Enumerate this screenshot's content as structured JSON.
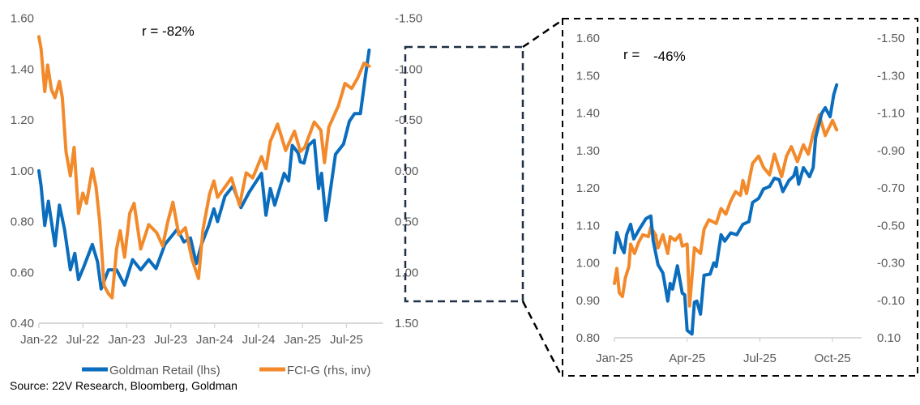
{
  "colors": {
    "retail": "#0b6dbd",
    "fci": "#f28a2b",
    "axis": "#d9d9d9",
    "box": "#1f2f45"
  },
  "legend": {
    "retail": "Goldman Retail (lhs)",
    "fci": "FCI-G (rhs, inv)"
  },
  "source": "Source: 22V Research, Bloomberg, Goldman",
  "chart_data": [
    {
      "type": "line",
      "id": "main",
      "annotation": "r = -82%",
      "x_unit": "months since Jan-22",
      "xlim": [
        0,
        47
      ],
      "x_ticks": [
        {
          "x": 0,
          "label": "Jan-22"
        },
        {
          "x": 6,
          "label": "Jul-22"
        },
        {
          "x": 12,
          "label": "Jan-23"
        },
        {
          "x": 18,
          "label": "Jul-23"
        },
        {
          "x": 24,
          "label": "Jan-24"
        },
        {
          "x": 30,
          "label": "Jul-24"
        },
        {
          "x": 36,
          "label": "Jan-25"
        },
        {
          "x": 42,
          "label": "Jul-25"
        }
      ],
      "ylim_left": [
        0.4,
        1.6
      ],
      "y_ticks_left": [
        "0.40",
        "0.60",
        "0.80",
        "1.00",
        "1.20",
        "1.40",
        "1.60"
      ],
      "ylim_right_inverted": [
        -1.5,
        1.5
      ],
      "y_ticks_right": [
        "-1.50",
        "-1.00",
        "-0.50",
        "0.00",
        "0.50",
        "1.00",
        "1.50"
      ],
      "series": [
        {
          "name": "Goldman Retail (lhs)",
          "axis": "left",
          "points": [
            [
              0,
              1.0
            ],
            [
              0.3,
              0.94
            ],
            [
              0.8,
              0.785
            ],
            [
              1.3,
              0.88
            ],
            [
              2.2,
              0.705
            ],
            [
              2.8,
              0.865
            ],
            [
              3.5,
              0.77
            ],
            [
              4.3,
              0.61
            ],
            [
              4.9,
              0.675
            ],
            [
              5.4,
              0.572
            ],
            [
              6.1,
              0.62
            ],
            [
              7.3,
              0.71
            ],
            [
              8,
              0.642
            ],
            [
              8.5,
              0.535
            ],
            [
              9.5,
              0.61
            ],
            [
              10.6,
              0.61
            ],
            [
              11.7,
              0.55
            ],
            [
              12.8,
              0.65
            ],
            [
              13.9,
              0.61
            ],
            [
              15,
              0.65
            ],
            [
              16,
              0.615
            ],
            [
              17.2,
              0.71
            ],
            [
              18.9,
              0.77
            ],
            [
              19.8,
              0.72
            ],
            [
              20.7,
              0.735
            ],
            [
              21.5,
              0.635
            ],
            [
              22.2,
              0.71
            ],
            [
              23.2,
              0.785
            ],
            [
              23.9,
              0.85
            ],
            [
              24.4,
              0.8
            ],
            [
              25.4,
              0.9
            ],
            [
              26.5,
              0.94
            ],
            [
              27.6,
              0.855
            ],
            [
              28.7,
              0.915
            ],
            [
              30.4,
              0.99
            ],
            [
              31,
              0.825
            ],
            [
              31.6,
              0.93
            ],
            [
              32.2,
              0.865
            ],
            [
              33.5,
              0.99
            ],
            [
              34.1,
              0.96
            ],
            [
              34.6,
              1.1
            ],
            [
              35.4,
              1.07
            ],
            [
              35.7,
              1.035
            ],
            [
              36.2,
              1.03
            ],
            [
              36.8,
              1.1
            ],
            [
              37.6,
              1.12
            ],
            [
              38.2,
              0.93
            ],
            [
              38.6,
              0.99
            ],
            [
              39.2,
              0.805
            ],
            [
              39.6,
              0.88
            ],
            [
              40.5,
              1.065
            ],
            [
              41.6,
              1.105
            ],
            [
              42.4,
              1.195
            ],
            [
              43.1,
              1.225
            ],
            [
              43.9,
              1.225
            ],
            [
              44.6,
              1.375
            ],
            [
              45.1,
              1.475
            ]
          ]
        },
        {
          "name": "FCI-G (rhs, inv)",
          "axis": "right",
          "points": [
            [
              0,
              -1.32
            ],
            [
              0.3,
              -1.2
            ],
            [
              0.8,
              -0.78
            ],
            [
              1.2,
              -1.04
            ],
            [
              1.7,
              -0.8
            ],
            [
              2.2,
              -0.72
            ],
            [
              2.8,
              -0.88
            ],
            [
              3.2,
              -0.72
            ],
            [
              3.7,
              -0.19
            ],
            [
              4.3,
              0.05
            ],
            [
              4.8,
              -0.23
            ],
            [
              5.4,
              0.42
            ],
            [
              6,
              0.22
            ],
            [
              6.5,
              0.32
            ],
            [
              7.3,
              -0.02
            ],
            [
              7.8,
              0.16
            ],
            [
              8.3,
              0.5
            ],
            [
              8.9,
              1.13
            ],
            [
              9.5,
              1.21
            ],
            [
              10,
              1.25
            ],
            [
              10.6,
              0.77
            ],
            [
              11.1,
              0.59
            ],
            [
              11.7,
              0.85
            ],
            [
              12.4,
              0.42
            ],
            [
              13,
              0.32
            ],
            [
              13.9,
              0.77
            ],
            [
              15,
              0.53
            ],
            [
              16.1,
              0.61
            ],
            [
              16.9,
              0.74
            ],
            [
              17.6,
              0.5
            ],
            [
              18.3,
              0.31
            ],
            [
              19.1,
              0.63
            ],
            [
              20,
              0.56
            ],
            [
              20.9,
              0.87
            ],
            [
              21.8,
              1.06
            ],
            [
              22.4,
              0.58
            ],
            [
              23.3,
              0.23
            ],
            [
              23.9,
              0.1
            ],
            [
              24.4,
              0.26
            ],
            [
              25.4,
              0.16
            ],
            [
              26.3,
              0.07
            ],
            [
              27.4,
              0.34
            ],
            [
              28.3,
              0.02
            ],
            [
              29.2,
              0.07
            ],
            [
              30.4,
              -0.14
            ],
            [
              31,
              -0.02
            ],
            [
              31.6,
              -0.29
            ],
            [
              32.6,
              -0.46
            ],
            [
              33.7,
              -0.2
            ],
            [
              34.9,
              -0.39
            ],
            [
              35.7,
              -0.19
            ],
            [
              36.3,
              -0.23
            ],
            [
              37.6,
              -0.48
            ],
            [
              38.5,
              -0.4
            ],
            [
              39,
              -0.08
            ],
            [
              39.6,
              -0.43
            ],
            [
              40.9,
              -0.64
            ],
            [
              41.8,
              -0.86
            ],
            [
              42.7,
              -0.81
            ],
            [
              43.5,
              -0.91
            ],
            [
              44.4,
              -1.06
            ],
            [
              45.1,
              -1.03
            ]
          ]
        }
      ]
    },
    {
      "type": "line",
      "id": "inset",
      "annotation_label": "r =",
      "annotation_value": "-46%",
      "x_unit": "months since Jan-25",
      "xlim": [
        0,
        10.2
      ],
      "x_ticks": [
        {
          "x": 0,
          "label": "Jan-25"
        },
        {
          "x": 3,
          "label": "Apr-25"
        },
        {
          "x": 6,
          "label": "Jul-25"
        },
        {
          "x": 9,
          "label": "Oct-25"
        }
      ],
      "ylim_left": [
        0.8,
        1.6
      ],
      "y_ticks_left": [
        "0.80",
        "0.90",
        "1.00",
        "1.10",
        "1.20",
        "1.30",
        "1.40",
        "1.50",
        "1.60"
      ],
      "ylim_right_inverted": [
        -1.5,
        0.1
      ],
      "y_ticks_right": [
        "0.10",
        "-0.10",
        "-0.30",
        "-0.50",
        "-0.70",
        "-0.90",
        "-1.10",
        "-1.30",
        "-1.50"
      ],
      "series": [
        {
          "name": "Goldman Retail (lhs)",
          "axis": "left",
          "points": [
            [
              0,
              1.027
            ],
            [
              0.1,
              1.081
            ],
            [
              0.3,
              1.04
            ],
            [
              0.4,
              1.027
            ],
            [
              0.5,
              1.075
            ],
            [
              0.67,
              1.103
            ],
            [
              0.8,
              1.064
            ],
            [
              1.05,
              1.092
            ],
            [
              1.3,
              1.118
            ],
            [
              1.5,
              1.125
            ],
            [
              1.6,
              1.06
            ],
            [
              1.8,
              0.995
            ],
            [
              2,
              0.973
            ],
            [
              2.2,
              0.898
            ],
            [
              2.3,
              0.945
            ],
            [
              2.4,
              0.93
            ],
            [
              2.6,
              0.992
            ],
            [
              2.8,
              0.919
            ],
            [
              2.9,
              0.915
            ],
            [
              3.0,
              0.82
            ],
            [
              3.2,
              0.81
            ],
            [
              3.3,
              0.895
            ],
            [
              3.4,
              0.898
            ],
            [
              3.55,
              0.863
            ],
            [
              3.7,
              0.967
            ],
            [
              3.95,
              0.97
            ],
            [
              4.1,
              1.0
            ],
            [
              4.2,
              0.99
            ],
            [
              4.4,
              1.075
            ],
            [
              4.55,
              1.058
            ],
            [
              4.8,
              1.08
            ],
            [
              5.05,
              1.075
            ],
            [
              5.3,
              1.103
            ],
            [
              5.55,
              1.11
            ],
            [
              5.7,
              1.161
            ],
            [
              5.95,
              1.172
            ],
            [
              6.15,
              1.197
            ],
            [
              6.4,
              1.204
            ],
            [
              6.6,
              1.226
            ],
            [
              6.8,
              1.222
            ],
            [
              6.95,
              1.19
            ],
            [
              7.2,
              1.22
            ],
            [
              7.4,
              1.232
            ],
            [
              7.5,
              1.254
            ],
            [
              7.6,
              1.21
            ],
            [
              7.8,
              1.254
            ],
            [
              8.05,
              1.23
            ],
            [
              8.2,
              1.254
            ],
            [
              8.3,
              1.334
            ],
            [
              8.55,
              1.399
            ],
            [
              8.7,
              1.414
            ],
            [
              8.9,
              1.39
            ],
            [
              9.05,
              1.449
            ],
            [
              9.17,
              1.475
            ]
          ]
        },
        {
          "name": "FCI-G (rhs, inv)",
          "axis": "right",
          "points": [
            [
              0,
              -0.19
            ],
            [
              0.1,
              -0.27
            ],
            [
              0.2,
              -0.14
            ],
            [
              0.33,
              -0.12
            ],
            [
              0.45,
              -0.22
            ],
            [
              0.6,
              -0.28
            ],
            [
              0.67,
              -0.4
            ],
            [
              0.83,
              -0.35
            ],
            [
              1.0,
              -0.41
            ],
            [
              1.17,
              -0.45
            ],
            [
              1.4,
              -0.44
            ],
            [
              1.5,
              -0.49
            ],
            [
              1.7,
              -0.45
            ],
            [
              1.8,
              -0.38
            ],
            [
              2,
              -0.45
            ],
            [
              2.2,
              -0.35
            ],
            [
              2.3,
              -0.44
            ],
            [
              2.5,
              -0.42
            ],
            [
              2.7,
              -0.45
            ],
            [
              2.8,
              -0.39
            ],
            [
              3.0,
              -0.4
            ],
            [
              3.1,
              -0.07
            ],
            [
              3.3,
              -0.38
            ],
            [
              3.55,
              -0.35
            ],
            [
              3.7,
              -0.48
            ],
            [
              3.9,
              -0.53
            ],
            [
              4.2,
              -0.51
            ],
            [
              4.4,
              -0.59
            ],
            [
              4.6,
              -0.56
            ],
            [
              4.8,
              -0.63
            ],
            [
              5,
              -0.68
            ],
            [
              5.2,
              -0.66
            ],
            [
              5.3,
              -0.74
            ],
            [
              5.45,
              -0.67
            ],
            [
              5.7,
              -0.83
            ],
            [
              5.95,
              -0.87
            ],
            [
              6.15,
              -0.81
            ],
            [
              6.4,
              -0.77
            ],
            [
              6.6,
              -0.88
            ],
            [
              6.9,
              -0.76
            ],
            [
              7.1,
              -0.87
            ],
            [
              7.3,
              -0.92
            ],
            [
              7.55,
              -0.84
            ],
            [
              7.8,
              -0.93
            ],
            [
              8.0,
              -0.88
            ],
            [
              8.2,
              -0.99
            ],
            [
              8.45,
              -1.09
            ],
            [
              8.7,
              -0.98
            ],
            [
              9,
              -1.06
            ],
            [
              9.17,
              -1.01
            ]
          ]
        }
      ]
    }
  ]
}
